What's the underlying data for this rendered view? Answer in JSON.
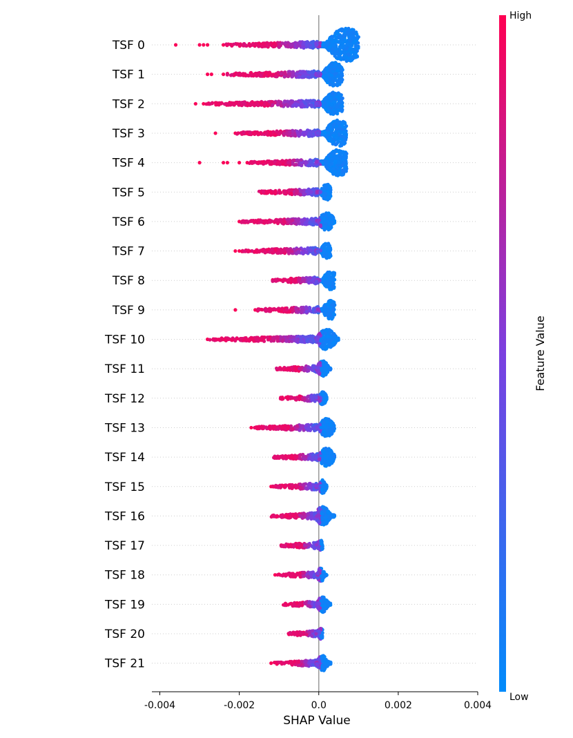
{
  "chart_data": {
    "type": "scatter",
    "subtype": "shap-beeswarm",
    "title": "",
    "xlabel": "SHAP Value",
    "ylabel": "",
    "xlim": [
      -0.0042,
      0.004
    ],
    "xticks": [
      -0.004,
      -0.002,
      0.0,
      0.002,
      0.004
    ],
    "xtick_labels": [
      "-0.004",
      "-0.002",
      "0.0",
      "0.002",
      "0.004"
    ],
    "grid": false,
    "zero_line": true,
    "colorbar": {
      "title": "Feature Value",
      "high_label": "High",
      "low_label": "Low",
      "high_color": "#ff0052",
      "mid_color": "#7b3fe0",
      "low_color": "#008bfb",
      "placement": "right"
    },
    "features": [
      {
        "name": "TSF 0",
        "min": -0.0036,
        "max": 0.001,
        "peak": 0.0007,
        "outliers": [
          -0.0036,
          -0.003,
          -0.0029,
          -0.0028,
          -0.0024
        ]
      },
      {
        "name": "TSF 1",
        "min": -0.0028,
        "max": 0.0006,
        "peak": 0.0004,
        "outliers": [
          -0.0028,
          -0.0027,
          -0.0024
        ]
      },
      {
        "name": "TSF 2",
        "min": -0.0031,
        "max": 0.0006,
        "peak": 0.0004,
        "outliers": [
          -0.0031,
          -0.0029
        ]
      },
      {
        "name": "TSF 3",
        "min": -0.0026,
        "max": 0.0007,
        "peak": 0.0005,
        "outliers": [
          -0.0026,
          -0.0021
        ]
      },
      {
        "name": "TSF 4",
        "min": -0.003,
        "max": 0.0007,
        "peak": 0.0005,
        "outliers": [
          -0.003,
          -0.0024,
          -0.0023,
          -0.002,
          -0.0018
        ]
      },
      {
        "name": "TSF 5",
        "min": -0.0015,
        "max": 0.0003,
        "peak": 0.0002,
        "outliers": []
      },
      {
        "name": "TSF 6",
        "min": -0.002,
        "max": 0.0004,
        "peak": 0.0002,
        "outliers": [
          -0.002
        ]
      },
      {
        "name": "TSF 7",
        "min": -0.0021,
        "max": 0.0003,
        "peak": 0.0002,
        "outliers": [
          -0.0021,
          -0.002
        ]
      },
      {
        "name": "TSF 8",
        "min": -0.0012,
        "max": 0.0004,
        "peak": 0.0003,
        "outliers": []
      },
      {
        "name": "TSF 9",
        "min": -0.0021,
        "max": 0.0004,
        "peak": 0.0003,
        "outliers": [
          -0.0021,
          -0.0016
        ]
      },
      {
        "name": "TSF 10",
        "min": -0.0028,
        "max": 0.0005,
        "peak": 0.0002,
        "outliers": [
          -0.0028
        ]
      },
      {
        "name": "TSF 11",
        "min": -0.0011,
        "max": 0.0003,
        "peak": 0.0001,
        "outliers": []
      },
      {
        "name": "TSF 12",
        "min": -0.001,
        "max": 0.0002,
        "peak": 0.0001,
        "outliers": []
      },
      {
        "name": "TSF 13",
        "min": -0.0017,
        "max": 0.0004,
        "peak": 0.0002,
        "outliers": [
          -0.0017
        ]
      },
      {
        "name": "TSF 14",
        "min": -0.0012,
        "max": 0.0004,
        "peak": 0.0002,
        "outliers": []
      },
      {
        "name": "TSF 15",
        "min": -0.0012,
        "max": 0.0002,
        "peak": 0.0001,
        "outliers": [
          -0.0012
        ]
      },
      {
        "name": "TSF 16",
        "min": -0.0012,
        "max": 0.0004,
        "peak": 0.0001,
        "outliers": []
      },
      {
        "name": "TSF 17",
        "min": -0.001,
        "max": 0.0001,
        "peak": 5e-05,
        "outliers": []
      },
      {
        "name": "TSF 18",
        "min": -0.0011,
        "max": 0.0002,
        "peak": 5e-05,
        "outliers": [
          -0.0011
        ]
      },
      {
        "name": "TSF 19",
        "min": -0.0009,
        "max": 0.0003,
        "peak": 0.0001,
        "outliers": []
      },
      {
        "name": "TSF 20",
        "min": -0.0008,
        "max": 0.0001,
        "peak": 5e-05,
        "outliers": []
      },
      {
        "name": "TSF 21",
        "min": -0.0012,
        "max": 0.0003,
        "peak": 0.0001,
        "outliers": [
          -0.0012
        ]
      }
    ]
  }
}
